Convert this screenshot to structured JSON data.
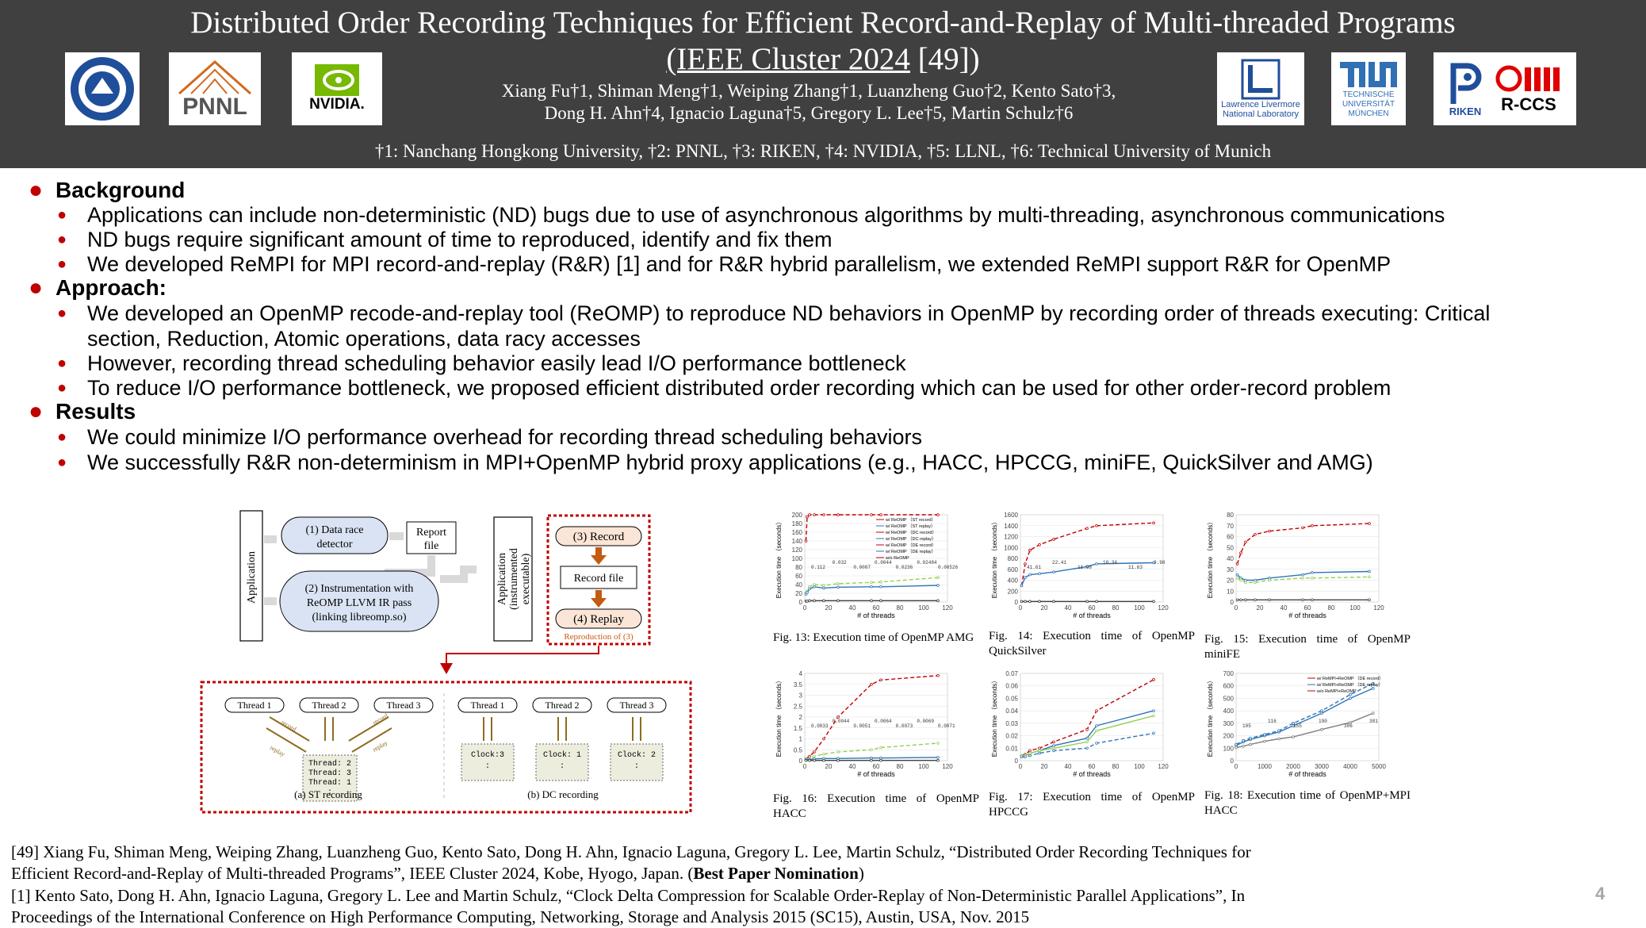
{
  "header": {
    "title_line1": "Distributed Order Recording Techniques for Efficient Record-and-Replay of Multi-threaded Programs",
    "title_line2_underlined": "(IEEE Cluster 2024",
    "title_line2_rest": " [49])",
    "authors_line1": "Xiang Fu†1, Shiman Meng†1, Weiping Zhang†1, Luanzheng Guo†2, Kento Sato†3,",
    "authors_line2": "Dong H. Ahn†4, Ignacio Laguna†5, Gregory L. Lee†5, Martin Schulz†6",
    "affiliations": "†1: Nanchang Hongkong University, †2: PNNL, †3: RIKEN, †4: NVIDIA, †5: LLNL, †6: Technical University of Munich",
    "logos": {
      "pnnl": "PNNL",
      "nvidia": "NVIDIA.",
      "llnl_line1": "Lawrence Livermore",
      "llnl_line2": "National Laboratory",
      "tum_line1": "TECHNISCHE",
      "tum_line2": "UNIVERSITÄT",
      "tum_line3": "MÜNCHEN",
      "riken": "RIKEN",
      "rccs": "R-CCS"
    }
  },
  "sections": [
    {
      "heading": "Background",
      "items": [
        "Applications can include non-deterministic (ND) bugs due to use of asynchronous algorithms by multi-threading, asynchronous communications",
        "ND bugs require significant amount of time to reproduced, identify and fix them",
        "We developed ReMPI for MPI record-and-replay (R&R) [1] and for R&R hybrid parallelism, we extended ReMPI support R&R for OpenMP"
      ]
    },
    {
      "heading": "Approach:",
      "items": [
        "We developed an OpenMP recode-and-replay tool (ReOMP) to reproduce ND behaviors in OpenMP by recording order of threads executing: Critical",
        "section, Reduction, Atomic operations, data racy accesses",
        "However, recording thread scheduling behavior easily lead I/O performance bottleneck",
        "To reduce I/O performance bottleneck, we proposed efficient distributed order recording which can be used for other order-record problem"
      ]
    },
    {
      "heading": "Results",
      "items": [
        "We could minimize I/O performance overhead for recording thread scheduling behaviors",
        "We successfully R&R non-determinism in MPI+OpenMP hybrid proxy applications (e.g., HACC, HPCCG, miniFE, QuickSilver and AMG)"
      ]
    }
  ],
  "diagram": {
    "application": "Application",
    "step1": [
      "(1) Data race",
      "detector"
    ],
    "report": [
      "Report",
      "file"
    ],
    "step2": [
      "(2) Instrumentation with",
      "ReOMP  LLVM IR pass",
      "(linking libreomp.so)"
    ],
    "instrumented": [
      "Application",
      "(instrumented",
      "executable)"
    ],
    "step3": "(3) Record",
    "record_file": "Record file",
    "step4": "(4) Replay",
    "reproduction": "Reproduction of (3)",
    "threads": [
      "Thread 1",
      "Thread 2",
      "Thread 3",
      "Thread 1",
      "Thread 2",
      "Thread 3"
    ],
    "record_label": "record",
    "replay_label": "replay",
    "st_list": [
      "Thread: 2",
      "Thread: 3",
      "Thread: 1",
      ":"
    ],
    "dc_clocks": [
      "Clock:3",
      "Clock: 1",
      "Clock: 2"
    ],
    "colon": ":",
    "caption_a": "(a) ST recording",
    "caption_b": "(b) DC recording"
  },
  "captions": [
    "Fig. 13: Execution time of OpenMP AMG",
    "Fig. 14: Execution time of OpenMP QuickSilver",
    "Fig. 15: Execution time of OpenMP miniFE",
    "Fig. 16: Execution time of OpenMP HACC",
    "Fig. 17: Execution time of OpenMP HPCCG",
    "Fig. 18: Execution time of OpenMP+MPI HACC"
  ],
  "chart_data": [
    {
      "type": "line",
      "xlabel": "# of threads",
      "ylabel": "Execution time （seconds）",
      "xlim": [
        0,
        120
      ],
      "ylim": [
        0,
        200
      ],
      "yticks": [
        0,
        20,
        40,
        60,
        80,
        100,
        120,
        140,
        160,
        180,
        200
      ],
      "xticks": [
        0,
        20,
        40,
        60,
        80,
        100,
        120
      ],
      "legend": [
        "w/ ReOMP （ST record）",
        "w/ ReOMP （ST replay）",
        "w/ ReOMP （DC record）",
        "w/ ReOMP （DC replay）",
        "w/ ReOMP （DE record）",
        "w/ ReOMP （DE replay）",
        "w/o ReOMP"
      ],
      "annotations": [
        "0.112",
        "0.032",
        "0.0087",
        "0.0044",
        "0.0236",
        "0.02484",
        "0.00526"
      ],
      "x": [
        1,
        2,
        4,
        8,
        16,
        28,
        56,
        64,
        112
      ],
      "series": [
        {
          "name": "w/ ReOMP （ST record）",
          "color": "#c00000",
          "dash": true,
          "values": [
            140,
            195,
            200,
            200,
            200,
            200,
            200,
            200,
            200
          ]
        },
        {
          "name": "w/ ReOMP （DC record）",
          "color": "#92d050",
          "dash": true,
          "values": [
            20,
            25,
            35,
            40,
            38,
            42,
            45,
            46,
            56
          ]
        },
        {
          "name": "w/ ReOMP （DE record）",
          "color": "#2e75b6",
          "dash": false,
          "values": [
            18,
            22,
            30,
            35,
            32,
            34,
            35,
            35,
            38
          ]
        },
        {
          "name": "w/o ReOMP",
          "color": "#404040",
          "dash": false,
          "values": [
            2,
            2,
            3,
            3,
            3,
            3,
            3,
            3,
            3
          ]
        }
      ]
    },
    {
      "type": "line",
      "xlabel": "# of threads",
      "ylabel": "Execution time （seconds）",
      "xlim": [
        0,
        120
      ],
      "ylim": [
        0,
        1600
      ],
      "yticks": [
        0,
        200,
        400,
        600,
        800,
        1000,
        1200,
        1400,
        1600
      ],
      "xticks": [
        0,
        20,
        40,
        60,
        80,
        100,
        120
      ],
      "annotations": [
        "41.61",
        "22.41",
        "11.98",
        "10.34",
        "11.63",
        "9.98"
      ],
      "x": [
        1,
        4,
        8,
        16,
        28,
        56,
        64,
        112
      ],
      "series": [
        {
          "name": "w/ ReOMP （ST record）",
          "color": "#c00000",
          "dash": true,
          "values": [
            300,
            700,
            950,
            1050,
            1150,
            1350,
            1400,
            1450
          ]
        },
        {
          "name": "w/ ReOMP （DE record）",
          "color": "#2e75b6",
          "dash": false,
          "values": [
            300,
            450,
            500,
            520,
            550,
            650,
            700,
            720
          ]
        },
        {
          "name": "w/o ReOMP",
          "color": "#404040",
          "dash": false,
          "values": [
            10,
            10,
            10,
            10,
            10,
            10,
            10,
            10
          ]
        }
      ]
    },
    {
      "type": "line",
      "xlabel": "# of threads",
      "ylabel": "Execution time （seconds）",
      "xlim": [
        0,
        120
      ],
      "ylim": [
        0,
        80
      ],
      "yticks": [
        0,
        10,
        20,
        30,
        40,
        50,
        60,
        70,
        80
      ],
      "xticks": [
        0,
        20,
        40,
        60,
        80,
        100,
        120
      ],
      "x": [
        1,
        4,
        8,
        16,
        28,
        56,
        64,
        112
      ],
      "series": [
        {
          "name": "w/ ReOMP （ST record）",
          "color": "#c00000",
          "dash": true,
          "values": [
            35,
            45,
            55,
            62,
            65,
            68,
            70,
            72
          ]
        },
        {
          "name": "w/ ReOMP （DE record）",
          "color": "#2e75b6",
          "dash": false,
          "values": [
            25,
            22,
            20,
            20,
            22,
            25,
            27,
            28
          ]
        },
        {
          "name": "w/ ReOMP （DC record）",
          "color": "#92d050",
          "dash": true,
          "values": [
            22,
            20,
            18,
            18,
            20,
            22,
            22,
            23
          ]
        },
        {
          "name": "w/o ReOMP",
          "color": "#404040",
          "dash": false,
          "values": [
            2,
            2,
            2,
            2,
            2,
            2,
            2,
            2
          ]
        }
      ]
    },
    {
      "type": "line",
      "xlabel": "# of threads",
      "ylabel": "Execution time （seconds）",
      "xlim": [
        0,
        120
      ],
      "ylim": [
        0,
        4
      ],
      "yticks": [
        0.0,
        0.5,
        1.0,
        1.5,
        2.0,
        2.5,
        3.0,
        3.5,
        4.0
      ],
      "xticks": [
        0,
        20,
        40,
        60,
        80,
        100,
        120
      ],
      "annotations": [
        "0.0033",
        "0.0044",
        "0.0051",
        "0.0064",
        "0.0073",
        "0.0069",
        "0.0071"
      ],
      "x": [
        1,
        4,
        8,
        16,
        28,
        56,
        64,
        112
      ],
      "series": [
        {
          "name": "w/ ReOMP （ST record）",
          "color": "#c00000",
          "dash": true,
          "values": [
            0.1,
            0.2,
            0.4,
            1.0,
            2.0,
            3.5,
            3.7,
            3.9
          ]
        },
        {
          "name": "w/ ReOMP （DC record）",
          "color": "#92d050",
          "dash": true,
          "values": [
            0.1,
            0.1,
            0.2,
            0.3,
            0.4,
            0.5,
            0.6,
            0.8
          ]
        },
        {
          "name": "w/ ReOMP （DE record）",
          "color": "#2e75b6",
          "dash": false,
          "values": [
            0.05,
            0.05,
            0.08,
            0.1,
            0.1,
            0.12,
            0.12,
            0.15
          ]
        },
        {
          "name": "w/o ReOMP",
          "color": "#404040",
          "dash": false,
          "values": [
            0.01,
            0.01,
            0.01,
            0.01,
            0.01,
            0.01,
            0.01,
            0.01
          ]
        }
      ]
    },
    {
      "type": "line",
      "xlabel": "# of threads",
      "ylabel": "Execution time （seconds）",
      "xlim": [
        0,
        120
      ],
      "ylim": [
        0,
        0.07
      ],
      "yticks": [
        0,
        0.01,
        0.02,
        0.03,
        0.04,
        0.05,
        0.06,
        0.07
      ],
      "xticks": [
        0,
        20,
        40,
        60,
        80,
        100,
        120
      ],
      "x": [
        1,
        4,
        8,
        16,
        28,
        56,
        64,
        112
      ],
      "series": [
        {
          "name": "w/ ReOMP （ST record）",
          "color": "#c00000",
          "dash": true,
          "values": [
            0.004,
            0.005,
            0.008,
            0.01,
            0.015,
            0.025,
            0.04,
            0.065
          ]
        },
        {
          "name": "w/ ReOMP （DE record）",
          "color": "#2e75b6",
          "dash": false,
          "values": [
            0.004,
            0.004,
            0.006,
            0.008,
            0.012,
            0.018,
            0.028,
            0.04
          ]
        },
        {
          "name": "w/ ReOMP （DC record）",
          "color": "#92d050",
          "dash": false,
          "values": [
            0.004,
            0.004,
            0.006,
            0.008,
            0.01,
            0.015,
            0.024,
            0.036
          ]
        },
        {
          "name": "w/ ReOMP （DE replay）",
          "color": "#2e75b6",
          "dash": true,
          "values": [
            0.003,
            0.003,
            0.004,
            0.006,
            0.008,
            0.01,
            0.014,
            0.022
          ]
        }
      ]
    },
    {
      "type": "line",
      "xlabel": "# of threads",
      "ylabel": "Execution time （seconds）",
      "xlim": [
        0,
        5000
      ],
      "ylim": [
        0,
        700
      ],
      "yticks": [
        0,
        100,
        200,
        300,
        400,
        500,
        600,
        700
      ],
      "xticks": [
        0,
        1000,
        2000,
        3000,
        4000,
        5000
      ],
      "legend": [
        "w/ ReMPI+ReOMP （DE record）",
        "w/ ReMPI+ReOMP （DE replay）",
        "w/o ReMPI+ReOMP"
      ],
      "annotations": [
        "105",
        "116",
        "155",
        "190",
        "306",
        "381"
      ],
      "x": [
        1,
        250,
        500,
        1000,
        1500,
        2000,
        3000,
        4000,
        4800
      ],
      "series": [
        {
          "name": "w/ ReMPI+ReOMP （DE record）",
          "color": "#2e75b6",
          "dash": false,
          "values": [
            120,
            150,
            170,
            200,
            230,
            280,
            380,
            500,
            580
          ]
        },
        {
          "name": "w/ ReMPI+ReOMP （DE replay）",
          "color": "#2e75b6",
          "dash": true,
          "values": [
            130,
            160,
            180,
            210,
            240,
            300,
            400,
            530,
            620
          ]
        },
        {
          "name": "w/o ReMPI+ReOMP",
          "color": "#808080",
          "dash": false,
          "values": [
            105,
            116,
            130,
            155,
            175,
            190,
            250,
            306,
            381
          ]
        }
      ]
    }
  ],
  "references": [
    "[49] Xiang Fu, Shiman Meng, Weiping Zhang, Luanzheng Guo, Kento Sato, Dong H. Ahn, Ignacio Laguna, Gregory L. Lee, Martin Schulz, “Distributed Order Recording Techniques for",
    "Efficient Record-and-Replay of Multi-threaded Programs”, IEEE Cluster 2024, Kobe, Hyogo, Japan. (",
    "Best Paper Nomination",
    ")",
    "[1] Kento Sato, Dong H. Ahn, Ignacio Laguna, Gregory L. Lee and Martin Schulz, “Clock Delta Compression for Scalable Order-Replay of Non-Deterministic Parallel Applications”, In",
    "Proceedings of the International Conference on High Performance Computing, Networking, Storage and Analysis 2015 (SC15), Austin, USA, Nov. 2015"
  ],
  "page_number": "4",
  "colors": {
    "header_bg": "#404040",
    "bullet": "#c00000",
    "accent_blue": "#dae3f3"
  }
}
